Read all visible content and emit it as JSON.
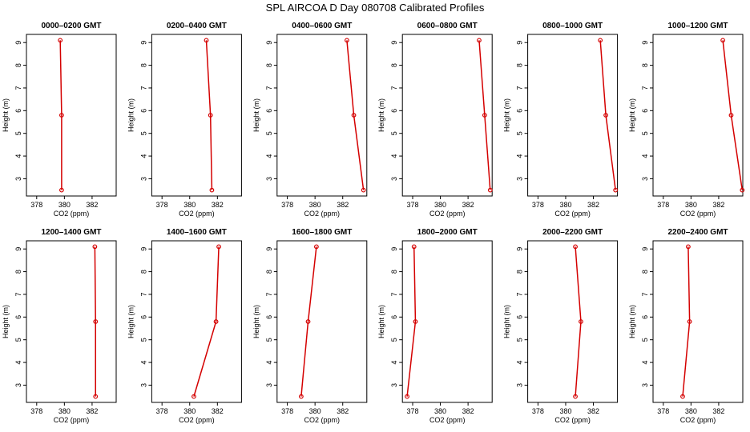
{
  "title": "SPL AIRCOA D  Day 080708  Calibrated Profiles",
  "chart_data": [
    {
      "type": "line",
      "title": "0000–0200 GMT",
      "xlabel": "CO2 (ppm)",
      "ylabel": "Height (m)",
      "color": "#d40000",
      "x": [
        379.7,
        379.8,
        379.8
      ],
      "values": [
        9.1,
        5.8,
        2.5
      ],
      "xlim": [
        377.26,
        383.74
      ],
      "ylim": [
        2.24,
        9.36
      ],
      "xticks": [
        378,
        380,
        382
      ],
      "yticks": [
        3,
        4,
        5,
        6,
        7,
        8,
        9
      ]
    },
    {
      "type": "line",
      "title": "0200–0400 GMT",
      "xlabel": "CO2 (ppm)",
      "ylabel": "Height (m)",
      "color": "#d40000",
      "x": [
        381.2,
        381.5,
        381.6
      ],
      "values": [
        9.1,
        5.8,
        2.5
      ],
      "xlim": [
        377.26,
        383.74
      ],
      "ylim": [
        2.24,
        9.36
      ],
      "xticks": [
        378,
        380,
        382
      ],
      "yticks": [
        3,
        4,
        5,
        6,
        7,
        8,
        9
      ]
    },
    {
      "type": "line",
      "title": "0400–0600 GMT",
      "xlabel": "CO2 (ppm)",
      "ylabel": "Height (m)",
      "color": "#d40000",
      "x": [
        382.3,
        382.8,
        383.5
      ],
      "values": [
        9.1,
        5.8,
        2.5
      ],
      "xlim": [
        377.26,
        383.74
      ],
      "ylim": [
        2.24,
        9.36
      ],
      "xticks": [
        378,
        380,
        382
      ],
      "yticks": [
        3,
        4,
        5,
        6,
        7,
        8,
        9
      ]
    },
    {
      "type": "line",
      "title": "0600–0800 GMT",
      "xlabel": "CO2 (ppm)",
      "ylabel": "Height (m)",
      "color": "#d40000",
      "x": [
        382.8,
        383.2,
        383.6
      ],
      "values": [
        9.1,
        5.8,
        2.5
      ],
      "xlim": [
        377.26,
        383.74
      ],
      "ylim": [
        2.24,
        9.36
      ],
      "xticks": [
        378,
        380,
        382
      ],
      "yticks": [
        3,
        4,
        5,
        6,
        7,
        8,
        9
      ]
    },
    {
      "type": "line",
      "title": "0800–1000 GMT",
      "xlabel": "CO2 (ppm)",
      "ylabel": "Height (m)",
      "color": "#d40000",
      "x": [
        382.5,
        382.9,
        383.6
      ],
      "values": [
        9.1,
        5.8,
        2.5
      ],
      "xlim": [
        377.26,
        383.74
      ],
      "ylim": [
        2.24,
        9.36
      ],
      "xticks": [
        378,
        380,
        382
      ],
      "yticks": [
        3,
        4,
        5,
        6,
        7,
        8,
        9
      ]
    },
    {
      "type": "line",
      "title": "1000–1200 GMT",
      "xlabel": "CO2 (ppm)",
      "ylabel": "Height (m)",
      "color": "#d40000",
      "x": [
        382.3,
        382.9,
        383.7
      ],
      "values": [
        9.1,
        5.8,
        2.5
      ],
      "xlim": [
        377.26,
        383.74
      ],
      "ylim": [
        2.24,
        9.36
      ],
      "xticks": [
        378,
        380,
        382
      ],
      "yticks": [
        3,
        4,
        5,
        6,
        7,
        8,
        9
      ]
    },
    {
      "type": "line",
      "title": "1200–1400 GMT",
      "xlabel": "CO2 (ppm)",
      "ylabel": "Height (m)",
      "color": "#d40000",
      "x": [
        382.2,
        382.25,
        382.25
      ],
      "values": [
        9.1,
        5.8,
        2.5
      ],
      "xlim": [
        377.26,
        383.74
      ],
      "ylim": [
        2.24,
        9.36
      ],
      "xticks": [
        378,
        380,
        382
      ],
      "yticks": [
        3,
        4,
        5,
        6,
        7,
        8,
        9
      ]
    },
    {
      "type": "line",
      "title": "1400–1600 GMT",
      "xlabel": "CO2 (ppm)",
      "ylabel": "Height (m)",
      "color": "#d40000",
      "x": [
        382.1,
        381.9,
        380.3
      ],
      "values": [
        9.1,
        5.8,
        2.5
      ],
      "xlim": [
        377.26,
        383.74
      ],
      "ylim": [
        2.24,
        9.36
      ],
      "xticks": [
        378,
        380,
        382
      ],
      "yticks": [
        3,
        4,
        5,
        6,
        7,
        8,
        9
      ]
    },
    {
      "type": "line",
      "title": "1600–1800 GMT",
      "xlabel": "CO2 (ppm)",
      "ylabel": "Height (m)",
      "color": "#d40000",
      "x": [
        380.1,
        379.5,
        379.0
      ],
      "values": [
        9.1,
        5.8,
        2.5
      ],
      "xlim": [
        377.26,
        383.74
      ],
      "ylim": [
        2.24,
        9.36
      ],
      "xticks": [
        378,
        380,
        382
      ],
      "yticks": [
        3,
        4,
        5,
        6,
        7,
        8,
        9
      ]
    },
    {
      "type": "line",
      "title": "1800–2000 GMT",
      "xlabel": "CO2 (ppm)",
      "ylabel": "Height (m)",
      "color": "#d40000",
      "x": [
        378.1,
        378.2,
        377.6
      ],
      "values": [
        9.1,
        5.8,
        2.5
      ],
      "xlim": [
        377.26,
        383.74
      ],
      "ylim": [
        2.24,
        9.36
      ],
      "xticks": [
        378,
        380,
        382
      ],
      "yticks": [
        3,
        4,
        5,
        6,
        7,
        8,
        9
      ]
    },
    {
      "type": "line",
      "title": "2000–2200 GMT",
      "xlabel": "CO2 (ppm)",
      "ylabel": "Height (m)",
      "color": "#d40000",
      "x": [
        380.7,
        381.1,
        380.7
      ],
      "values": [
        9.1,
        5.8,
        2.5
      ],
      "xlim": [
        377.26,
        383.74
      ],
      "ylim": [
        2.24,
        9.36
      ],
      "xticks": [
        378,
        380,
        382
      ],
      "yticks": [
        3,
        4,
        5,
        6,
        7,
        8,
        9
      ]
    },
    {
      "type": "line",
      "title": "2200–2400 GMT",
      "xlabel": "CO2 (ppm)",
      "ylabel": "Height (m)",
      "color": "#d40000",
      "x": [
        379.8,
        379.9,
        379.4
      ],
      "values": [
        9.1,
        5.8,
        2.5
      ],
      "xlim": [
        377.26,
        383.74
      ],
      "ylim": [
        2.24,
        9.36
      ],
      "xticks": [
        378,
        380,
        382
      ],
      "yticks": [
        3,
        4,
        5,
        6,
        7,
        8,
        9
      ]
    }
  ]
}
